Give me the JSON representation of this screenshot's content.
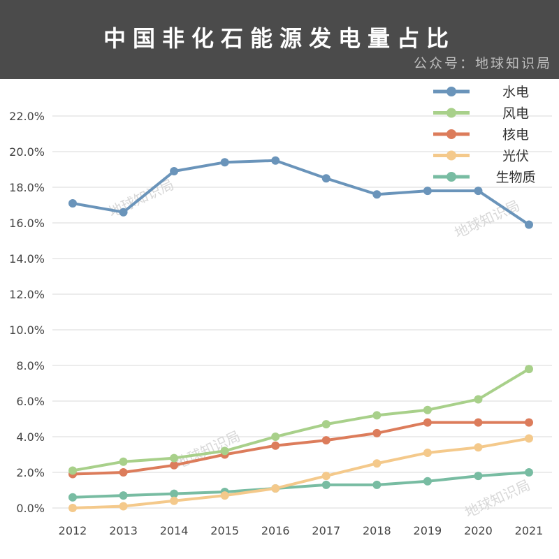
{
  "header": {
    "title": "中国非化石能源发电量占比",
    "source": "公众号：地球知识局"
  },
  "watermark": "地球知识局",
  "chart_data": {
    "type": "line",
    "title": "中国非化石能源发电量占比",
    "xlabel": "",
    "ylabel": "",
    "x": [
      "2012",
      "2013",
      "2014",
      "2015",
      "2016",
      "2017",
      "2018",
      "2019",
      "2020",
      "2021"
    ],
    "ylim": [
      0,
      22
    ],
    "yticks": [
      "0.0%",
      "2.0%",
      "4.0%",
      "6.0%",
      "8.0%",
      "10.0%",
      "12.0%",
      "14.0%",
      "16.0%",
      "18.0%",
      "20.0%",
      "22.0%"
    ],
    "grid": true,
    "legend_position": "top-right",
    "series": [
      {
        "name": "水电",
        "color": "#6a94ba",
        "values": [
          17.1,
          16.6,
          18.9,
          19.4,
          19.5,
          18.5,
          17.6,
          17.8,
          17.8,
          15.9
        ]
      },
      {
        "name": "风电",
        "color": "#a8d08a",
        "values": [
          2.1,
          2.6,
          2.8,
          3.2,
          4.0,
          4.7,
          5.2,
          5.5,
          6.1,
          7.8
        ]
      },
      {
        "name": "核电",
        "color": "#dc7c5b",
        "values": [
          1.9,
          2.0,
          2.4,
          3.0,
          3.5,
          3.8,
          4.2,
          4.8,
          4.8,
          4.8
        ]
      },
      {
        "name": "光伏",
        "color": "#f4c98b",
        "values": [
          0.0,
          0.1,
          0.4,
          0.7,
          1.1,
          1.8,
          2.5,
          3.1,
          3.4,
          3.9
        ]
      },
      {
        "name": "生物质",
        "color": "#78bca2",
        "values": [
          0.6,
          0.7,
          0.8,
          0.9,
          1.1,
          1.3,
          1.3,
          1.5,
          1.8,
          2.0
        ]
      }
    ]
  }
}
